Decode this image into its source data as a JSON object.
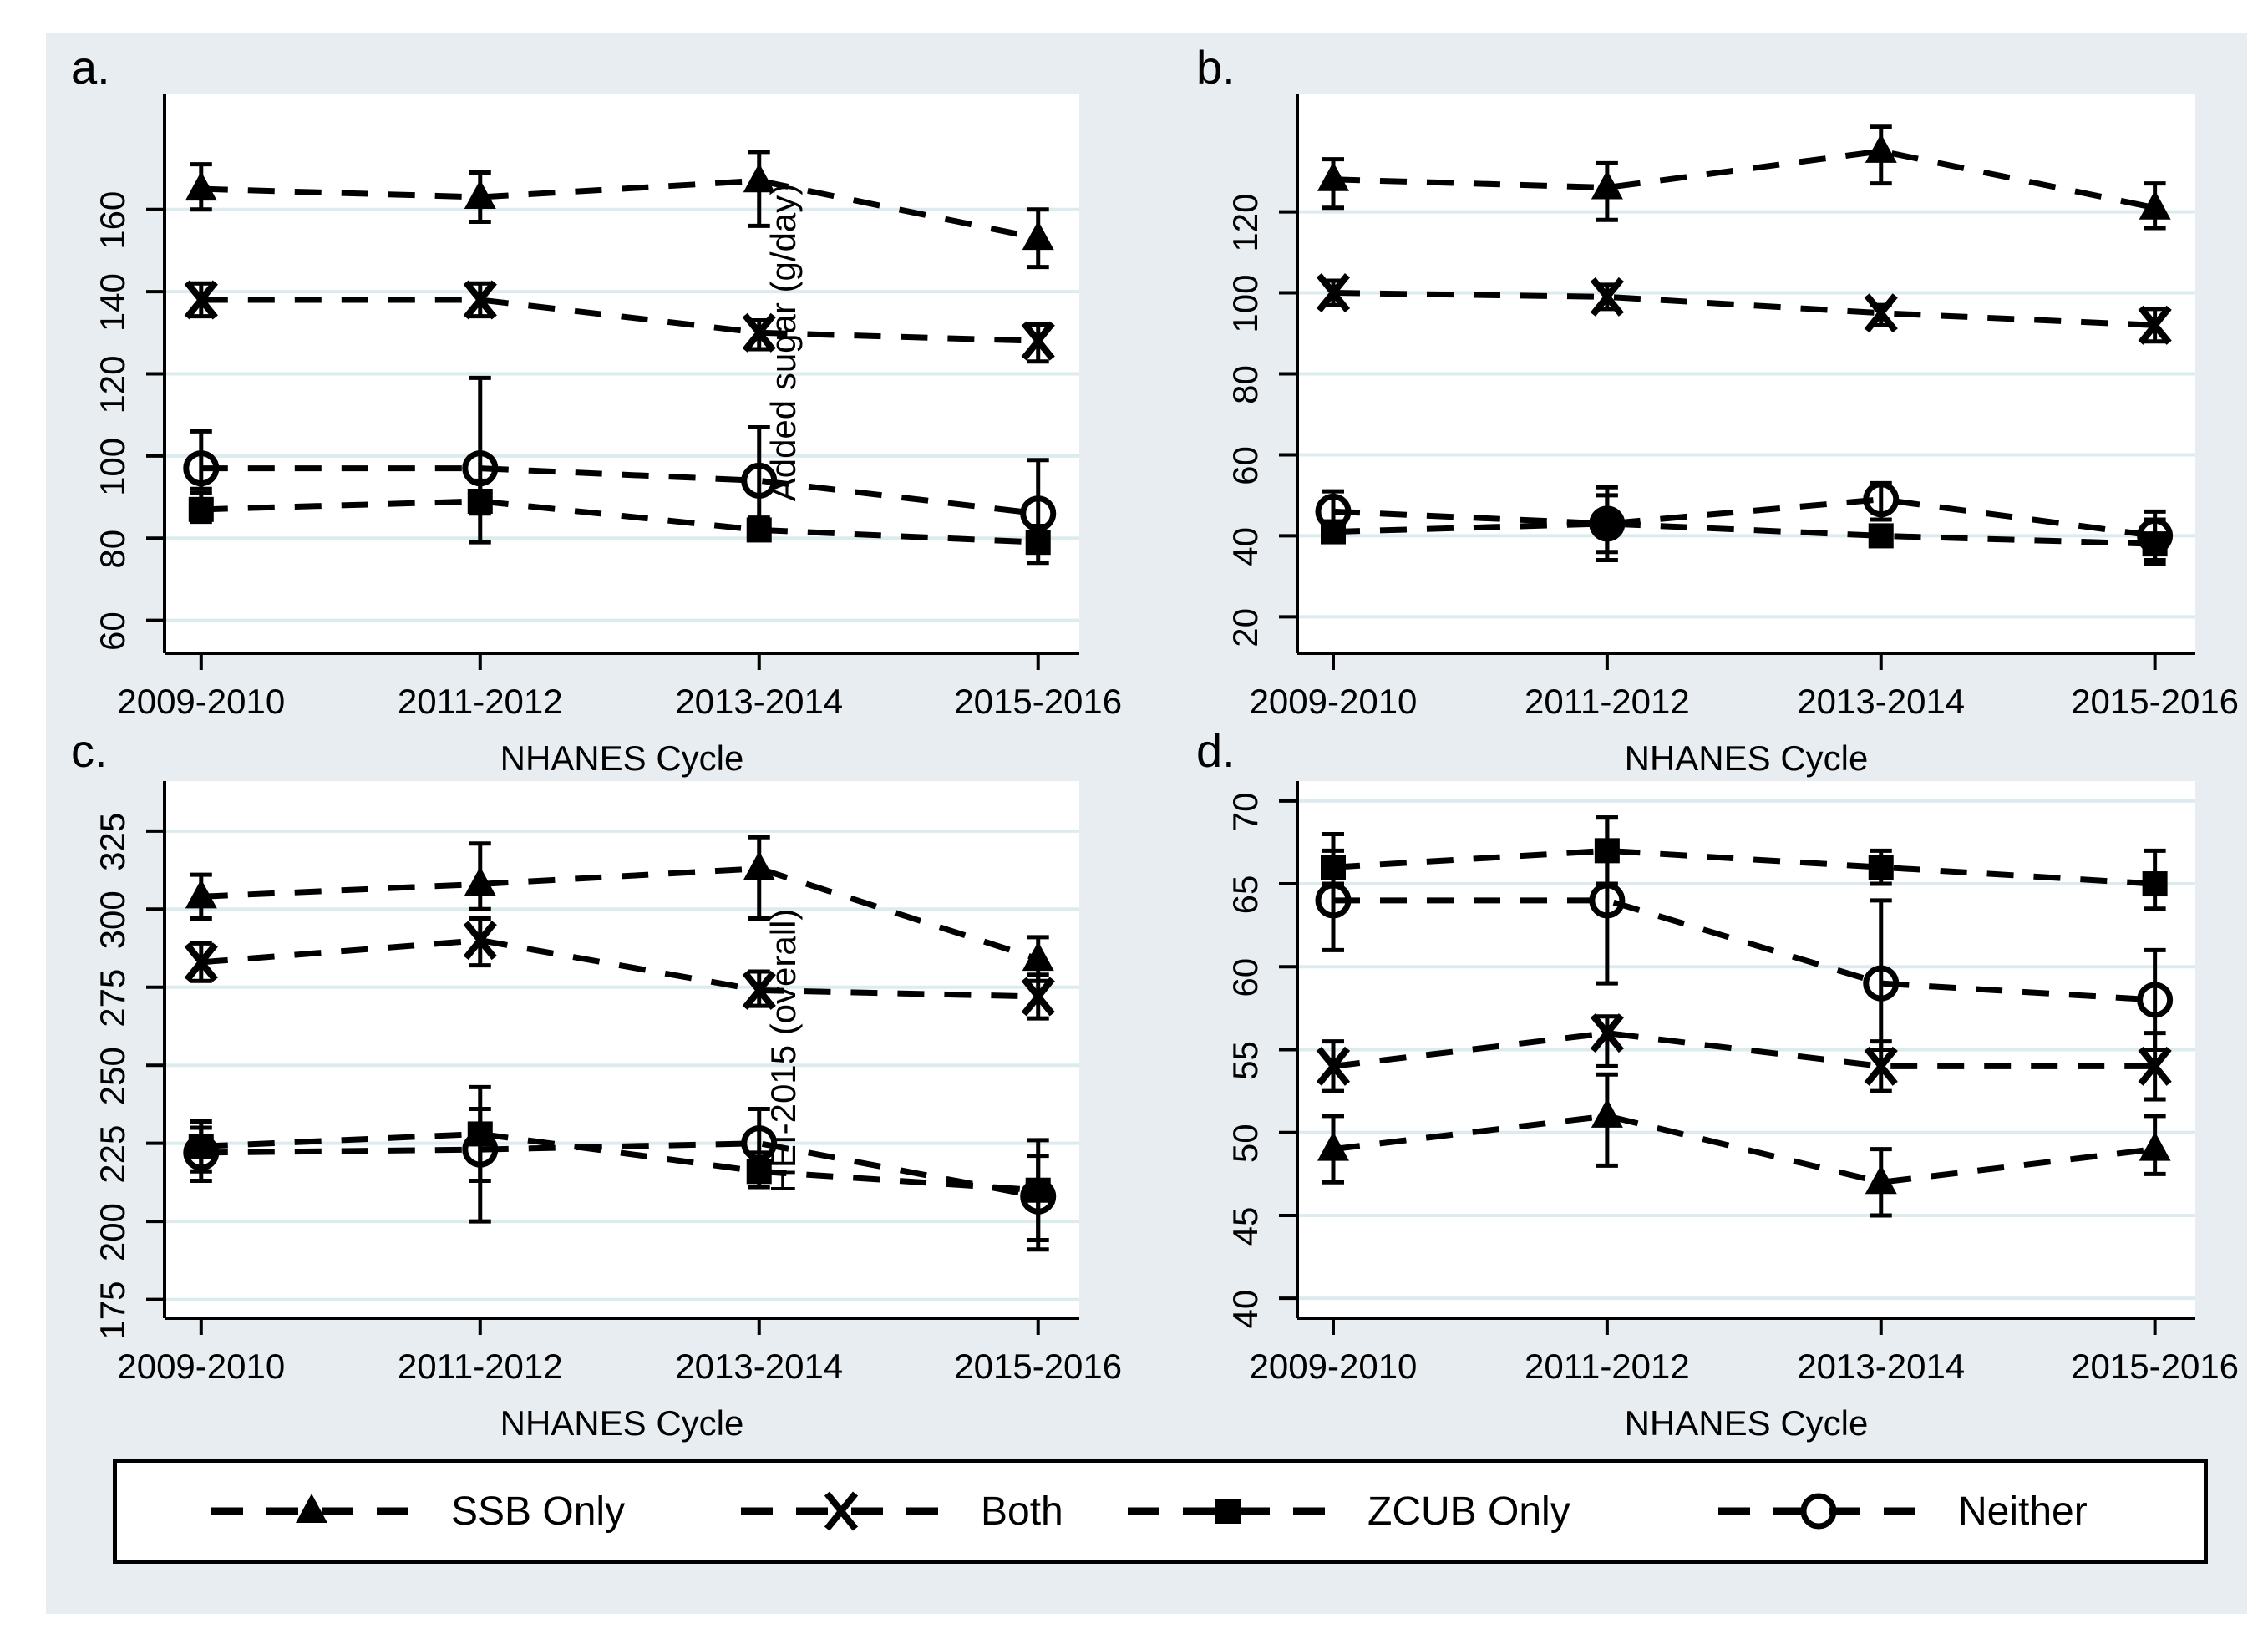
{
  "figure": {
    "background_color": "#e7edf0",
    "plot_background": "#ffffff",
    "grid_color": "#dcebee",
    "axis_color": "#000000",
    "xlabel": "NHANES Cycle",
    "categories": [
      "2009-2010",
      "2011-2012",
      "2013-2014",
      "2015-2016"
    ]
  },
  "legend": {
    "items": [
      {
        "label": "SSB Only",
        "marker": "triangle"
      },
      {
        "label": "Both",
        "marker": "x"
      },
      {
        "label": "ZCUB Only",
        "marker": "square"
      },
      {
        "label": "Neither",
        "marker": "circle"
      }
    ]
  },
  "chart_data": [
    {
      "type": "line",
      "panel_label": "a.",
      "ytitle": "Added sugar (g/day)",
      "xlabel": "NHANES Cycle",
      "categories": [
        "2009-2010",
        "2011-2012",
        "2013-2014",
        "2015-2016"
      ],
      "ylim": [
        52,
        188
      ],
      "yticks": [
        60,
        80,
        100,
        120,
        140,
        160
      ],
      "grid": true,
      "series": [
        {
          "name": "SSB Only",
          "marker": "triangle",
          "values": [
            165,
            163,
            167,
            153
          ],
          "ci_low": [
            160,
            157,
            156,
            146
          ],
          "ci_high": [
            171,
            169,
            174,
            160
          ]
        },
        {
          "name": "Both",
          "marker": "x",
          "values": [
            138,
            138,
            130,
            128
          ],
          "ci_low": [
            134,
            134,
            126,
            123
          ],
          "ci_high": [
            142,
            142,
            133,
            132
          ]
        },
        {
          "name": "ZCUB Only",
          "marker": "square",
          "values": [
            87,
            89,
            82,
            79
          ],
          "ci_low": [
            84,
            86,
            80,
            74
          ],
          "ci_high": [
            91,
            94,
            85,
            83
          ]
        },
        {
          "name": "Neither",
          "marker": "circle",
          "values": [
            97,
            97,
            94,
            86
          ],
          "ci_low": [
            92,
            79,
            84,
            78
          ],
          "ci_high": [
            106,
            119,
            107,
            99
          ]
        }
      ]
    },
    {
      "type": "line",
      "panel_label": "b.",
      "ytitle": null,
      "xlabel": "NHANES Cycle",
      "categories": [
        "2009-2010",
        "2011-2012",
        "2013-2014",
        "2015-2016"
      ],
      "ylim": [
        11,
        149
      ],
      "yticks": [
        20,
        40,
        60,
        80,
        100,
        120
      ],
      "grid": true,
      "series": [
        {
          "name": "SSB Only",
          "marker": "triangle",
          "values": [
            128,
            126,
            135,
            121
          ],
          "ci_low": [
            121,
            118,
            127,
            116
          ],
          "ci_high": [
            133,
            132,
            141,
            127
          ]
        },
        {
          "name": "Both",
          "marker": "x",
          "values": [
            100,
            99,
            95,
            92
          ],
          "ci_low": [
            97,
            96,
            92,
            88
          ],
          "ci_high": [
            103,
            102,
            97,
            96
          ]
        },
        {
          "name": "ZCUB Only",
          "marker": "square",
          "values": [
            41,
            43,
            40,
            38
          ],
          "ci_low": [
            39,
            34,
            38,
            33
          ],
          "ci_high": [
            43,
            52,
            42,
            44
          ]
        },
        {
          "name": "Neither",
          "marker": "circle",
          "values": [
            46,
            43,
            49,
            40
          ],
          "ci_low": [
            42,
            36,
            44,
            34
          ],
          "ci_high": [
            51,
            50,
            53,
            46
          ]
        }
      ]
    },
    {
      "type": "line",
      "panel_label": "c.",
      "ytitle": "HEI-2015 (overall)",
      "xlabel": "NHANES Cycle",
      "categories": [
        "2009-2010",
        "2011-2012",
        "2013-2014",
        "2015-2016"
      ],
      "ylim": [
        169,
        341
      ],
      "yticks": [
        175,
        200,
        225,
        250,
        275,
        300,
        325
      ],
      "grid": true,
      "series": [
        {
          "name": "SSB Only",
          "marker": "triangle",
          "values": [
            304,
            308,
            313,
            284
          ],
          "ci_low": [
            297,
            300,
            297,
            277
          ],
          "ci_high": [
            311,
            321,
            323,
            291
          ]
        },
        {
          "name": "Both",
          "marker": "x",
          "values": [
            283,
            290,
            274,
            272
          ],
          "ci_low": [
            277,
            282,
            269,
            265
          ],
          "ci_high": [
            289,
            297,
            280,
            279
          ]
        },
        {
          "name": "ZCUB Only",
          "marker": "square",
          "values": [
            224,
            228,
            216,
            210
          ],
          "ci_low": [
            216,
            213,
            211,
            194
          ],
          "ci_high": [
            232,
            243,
            222,
            221
          ]
        },
        {
          "name": "Neither",
          "marker": "circle",
          "values": [
            222,
            223,
            225,
            208
          ],
          "ci_low": [
            213,
            200,
            218,
            191
          ],
          "ci_high": [
            230,
            236,
            236,
            226
          ]
        }
      ]
    },
    {
      "type": "line",
      "panel_label": "d.",
      "ytitle": null,
      "xlabel": "NHANES Cycle",
      "categories": [
        "2009-2010",
        "2011-2012",
        "2013-2014",
        "2015-2016"
      ],
      "ylim": [
        38.8,
        71.2
      ],
      "yticks": [
        40,
        45,
        50,
        55,
        60,
        65,
        70
      ],
      "grid": true,
      "series": [
        {
          "name": "SSB Only",
          "marker": "triangle",
          "values": [
            49,
            51,
            47,
            49
          ],
          "ci_low": [
            47,
            48,
            45,
            47.5
          ],
          "ci_high": [
            51,
            53.5,
            49,
            51
          ]
        },
        {
          "name": "Both",
          "marker": "x",
          "values": [
            54,
            56,
            54,
            54
          ],
          "ci_low": [
            52.5,
            54,
            52.5,
            52
          ],
          "ci_high": [
            55.5,
            57,
            55.5,
            56
          ]
        },
        {
          "name": "ZCUB Only",
          "marker": "square",
          "values": [
            66,
            67,
            66,
            65
          ],
          "ci_low": [
            65,
            65,
            65,
            63.5
          ],
          "ci_high": [
            68,
            69,
            67,
            67
          ]
        },
        {
          "name": "Neither",
          "marker": "circle",
          "values": [
            64,
            64,
            59,
            58
          ],
          "ci_low": [
            61,
            59,
            55,
            55
          ],
          "ci_high": [
            67,
            69,
            64,
            61
          ]
        }
      ]
    }
  ]
}
